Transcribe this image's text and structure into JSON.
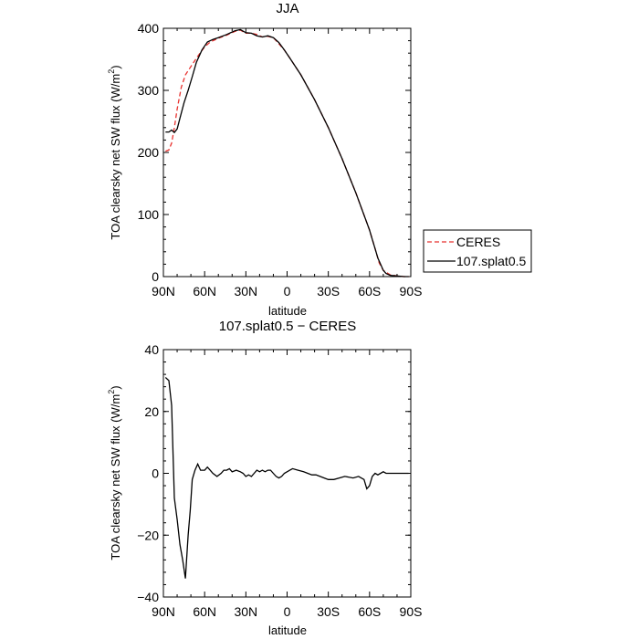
{
  "chart_data": [
    {
      "type": "line",
      "title": "JJA",
      "xlabel": "latitude",
      "ylabel": "TOA clearsky net SW flux (W/m",
      "ylabel_sup": "2",
      "ylabel_end": ")",
      "xlim": [
        90,
        -90
      ],
      "ylim": [
        0,
        400
      ],
      "xtick_values": [
        90,
        60,
        30,
        0,
        -30,
        -60,
        -90
      ],
      "xtick_labels": [
        "90N",
        "60N",
        "30N",
        "0",
        "30S",
        "60S",
        "90S"
      ],
      "ytick_values": [
        0,
        100,
        200,
        300,
        400
      ],
      "ytick_labels": [
        "0",
        "100",
        "200",
        "300",
        "400"
      ],
      "legend_position": "right",
      "series": [
        {
          "name": "CERES",
          "color": "#e8322f",
          "dash": "dashed",
          "x": [
            88.5,
            86,
            84,
            82,
            80,
            77,
            74,
            71,
            68,
            64,
            60,
            56,
            50,
            44,
            38,
            34,
            30,
            26,
            22,
            18,
            14,
            10,
            6,
            2,
            -2,
            -10,
            -20,
            -30,
            -40,
            -50,
            -60,
            -64,
            -67,
            -70,
            -75,
            -80,
            -85,
            -88.5
          ],
          "y": [
            202,
            204,
            215,
            240,
            270,
            305,
            325,
            335,
            345,
            358,
            370,
            378,
            384,
            389,
            395,
            397,
            392,
            392,
            390,
            386,
            387,
            385,
            375,
            365,
            352,
            325,
            285,
            240,
            190,
            135,
            75,
            45,
            22,
            10,
            3,
            1,
            0,
            0
          ]
        },
        {
          "name": "107.splat0.5",
          "color": "#000000",
          "dash": "solid",
          "x": [
            88.5,
            86,
            84,
            82,
            80,
            78,
            75,
            72,
            69,
            66,
            62,
            58,
            54,
            50,
            44,
            38,
            34,
            30,
            26,
            22,
            18,
            14,
            10,
            6,
            2,
            -2,
            -10,
            -20,
            -30,
            -40,
            -50,
            -60,
            -62,
            -64,
            -66,
            -68,
            -70,
            -72,
            -75,
            -80,
            -85,
            -88.5
          ],
          "y": [
            233,
            233,
            236,
            232,
            238,
            255,
            280,
            300,
            322,
            345,
            365,
            378,
            382,
            385,
            390,
            396,
            398,
            393,
            392,
            388,
            386,
            388,
            385,
            377,
            365,
            352,
            325,
            285,
            240,
            190,
            135,
            75,
            60,
            45,
            30,
            20,
            10,
            5,
            2,
            1,
            0,
            0
          ]
        }
      ]
    },
    {
      "type": "line",
      "title": "107.splat0.5 − CERES",
      "xlabel": "latitude",
      "ylabel": "TOA clearsky net SW flux (W/m",
      "ylabel_sup": "2",
      "ylabel_end": ")",
      "xlim": [
        90,
        -90
      ],
      "ylim": [
        -40,
        40
      ],
      "xtick_values": [
        90,
        60,
        30,
        0,
        -30,
        -60,
        -90
      ],
      "xtick_labels": [
        "90N",
        "60N",
        "30N",
        "0",
        "30S",
        "60S",
        "90S"
      ],
      "ytick_values": [
        -40,
        -20,
        0,
        20,
        40
      ],
      "ytick_labels": [
        "−40",
        "−20",
        "0",
        "20",
        "40"
      ],
      "series": [
        {
          "color": "#000000",
          "dash": "solid",
          "x": [
            88.5,
            86,
            84,
            82,
            80,
            78,
            76,
            74,
            72,
            70.5,
            69,
            67,
            65,
            63,
            60,
            58,
            56,
            54,
            51,
            48,
            46,
            44,
            42,
            40,
            37,
            34,
            32,
            30,
            28,
            26,
            24,
            22,
            20,
            18,
            16,
            14,
            12,
            10,
            8,
            6,
            4,
            2,
            0,
            -2,
            -4,
            -8,
            -12,
            -15,
            -18,
            -21,
            -24,
            -27,
            -30,
            -34,
            -38,
            -42,
            -48,
            -52,
            -56,
            -58,
            -60,
            -62,
            -64,
            -66,
            -68,
            -70,
            -72,
            -75,
            -80,
            -85,
            -88.5
          ],
          "y": [
            31,
            30,
            22,
            -8,
            -15,
            -23,
            -28,
            -34,
            -20,
            -12,
            -2,
            1,
            3,
            1,
            1,
            2,
            1,
            0,
            -1,
            0,
            1,
            1,
            1.5,
            0.5,
            1,
            0.5,
            0,
            -1,
            -0.5,
            -1,
            0,
            1,
            0.5,
            1,
            0.5,
            1,
            1,
            0,
            -1,
            -1.5,
            -1,
            0,
            0.5,
            1,
            1.5,
            1,
            0.5,
            0,
            -0.5,
            -0.5,
            -1,
            -1.5,
            -2,
            -2,
            -1.5,
            -1,
            -1.5,
            -1,
            -2,
            -5,
            -4,
            -1,
            0,
            -0.5,
            0,
            0.5,
            0,
            0,
            0,
            0,
            0
          ]
        }
      ]
    }
  ]
}
